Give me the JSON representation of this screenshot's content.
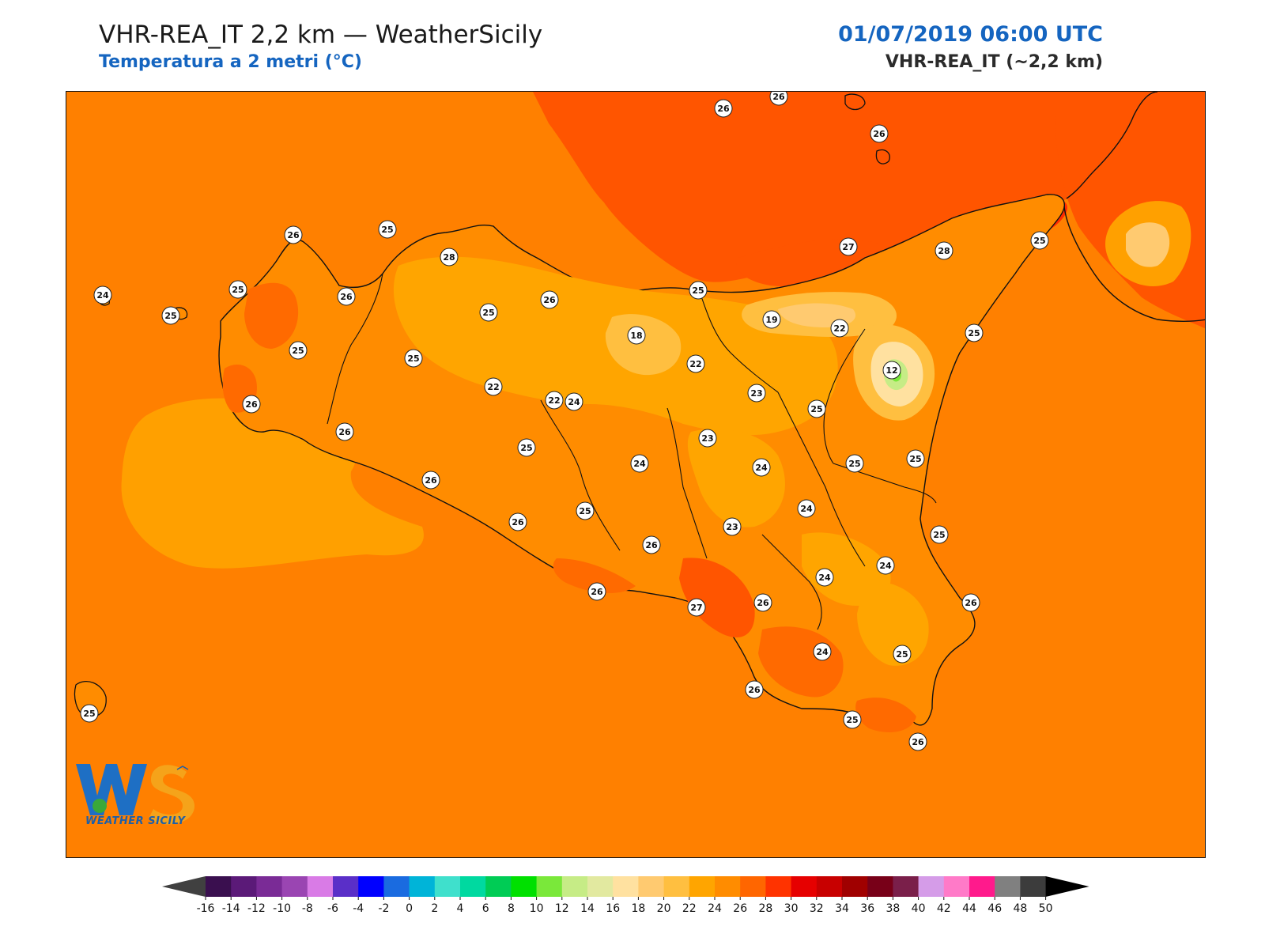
{
  "header": {
    "title": "VHR-REA_IT 2,2 km — WeatherSicily",
    "subtitle": "Temperatura a 2 metri (°C)",
    "datetime": "01/07/2019 06:00 UTC",
    "model": "VHR-REA_IT (~2,2 km)"
  },
  "logo": {
    "mark": "WS",
    "name": "WEATHER SICILY"
  },
  "colorbar": {
    "ticks": [
      "-16",
      "-14",
      "-12",
      "-10",
      "-8",
      "-6",
      "-4",
      "-2",
      "0",
      "2",
      "4",
      "6",
      "8",
      "10",
      "12",
      "14",
      "16",
      "18",
      "20",
      "22",
      "24",
      "26",
      "28",
      "30",
      "32",
      "34",
      "36",
      "38",
      "40",
      "42",
      "44",
      "46",
      "48",
      "50"
    ],
    "colors": [
      "#3a0f4f",
      "#5b1a78",
      "#7a2b96",
      "#9a45b2",
      "#d97be6",
      "#5a2fc8",
      "#0000ff",
      "#1a6be0",
      "#00b4d8",
      "#3fe0cc",
      "#00d9a0",
      "#00cc55",
      "#00e000",
      "#7ae83a",
      "#c6ec86",
      "#e2e9a0",
      "#ffe1a0",
      "#ffca70",
      "#ffbf40",
      "#ffa500",
      "#ff8c00",
      "#ff6600",
      "#ff3300",
      "#e60000",
      "#c80000",
      "#a00000",
      "#780018",
      "#7a1f4a",
      "#d59ce8",
      "#ff7ac8",
      "#ff1a8c",
      "#808080",
      "#3c3c3c"
    ],
    "under_color": "#404040",
    "over_color": "#000000"
  },
  "stations": [
    {
      "v": "26"
    },
    {
      "v": "26"
    },
    {
      "v": "26"
    },
    {
      "v": "24"
    },
    {
      "v": "26"
    },
    {
      "v": "25"
    },
    {
      "v": "25"
    },
    {
      "v": "28"
    },
    {
      "v": "25"
    },
    {
      "v": "27"
    },
    {
      "v": "28"
    },
    {
      "v": "25"
    },
    {
      "v": "26"
    },
    {
      "v": "25"
    },
    {
      "v": "26"
    },
    {
      "v": "25"
    },
    {
      "v": "25"
    },
    {
      "v": "22"
    },
    {
      "v": "19"
    },
    {
      "v": "22"
    },
    {
      "v": "25"
    },
    {
      "v": "25"
    },
    {
      "v": "18"
    },
    {
      "v": "22"
    },
    {
      "v": "12"
    },
    {
      "v": "22"
    },
    {
      "v": "24"
    },
    {
      "v": "23"
    },
    {
      "v": "26"
    },
    {
      "v": "25"
    },
    {
      "v": "26"
    },
    {
      "v": "25"
    },
    {
      "v": "23"
    },
    {
      "v": "24"
    },
    {
      "v": "24"
    },
    {
      "v": "25"
    },
    {
      "v": "25"
    },
    {
      "v": "26"
    },
    {
      "v": "26"
    },
    {
      "v": "25"
    },
    {
      "v": "24"
    },
    {
      "v": "23"
    },
    {
      "v": "25"
    },
    {
      "v": "26"
    },
    {
      "v": "24"
    },
    {
      "v": "24"
    },
    {
      "v": "26"
    },
    {
      "v": "27"
    },
    {
      "v": "26"
    },
    {
      "v": "26"
    },
    {
      "v": "24"
    },
    {
      "v": "25"
    },
    {
      "v": "26"
    },
    {
      "v": "25"
    },
    {
      "v": "25"
    },
    {
      "v": "26"
    }
  ]
}
